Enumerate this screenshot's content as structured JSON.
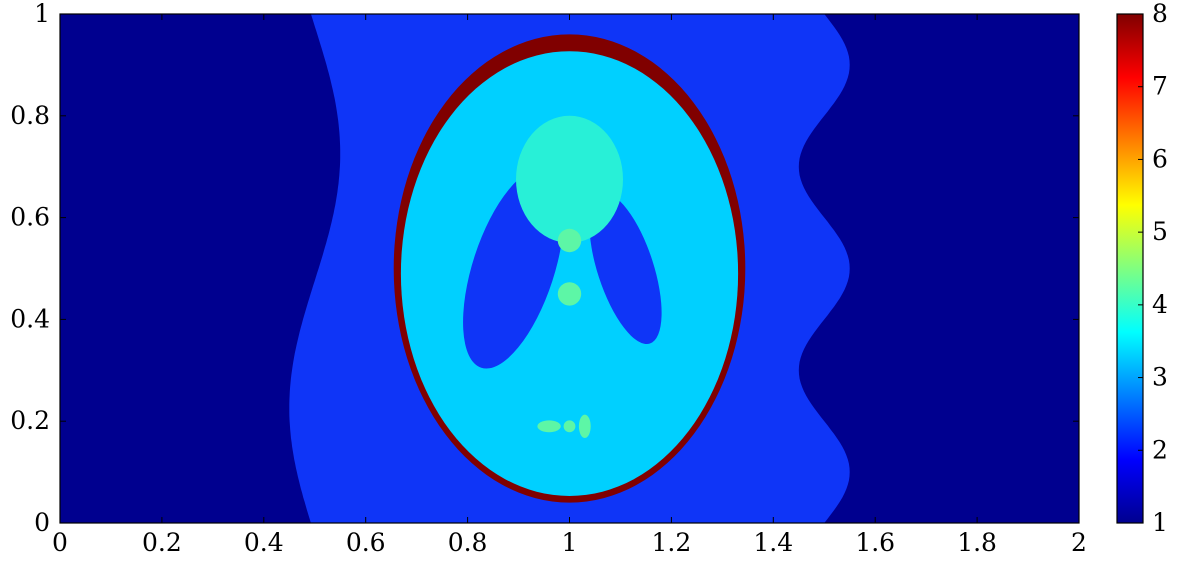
{
  "chart_data": [
    {
      "type": "heatmap",
      "title": "",
      "xlabel": "",
      "ylabel": "",
      "xlim": [
        0,
        2
      ],
      "ylim": [
        0,
        1
      ],
      "x_ticks": [
        "0",
        "0.2",
        "0.4",
        "0.6",
        "0.8",
        "1",
        "1.2",
        "1.4",
        "1.6",
        "1.8",
        "2"
      ],
      "y_ticks": [
        "0",
        "0.2",
        "0.4",
        "0.6",
        "0.8",
        "1"
      ],
      "grid": false,
      "colormap": "jet",
      "background_level": 1,
      "colors": {
        "level_1": "#00008f",
        "level_2": "#0f35f7",
        "level_3_4": "#00d0ff",
        "level_4": "#28f0d7",
        "level_4_5": "#5df6a6",
        "level_8": "#800000"
      },
      "regions": [
        {
          "name": "outer-band",
          "value": 2,
          "x_left_center": 0.5,
          "x_right_center": 1.5,
          "wave_amplitude": 0.05,
          "wave_cycles": 2.5
        },
        {
          "name": "skull-ring",
          "value": 8,
          "center": [
            1.0,
            0.5
          ],
          "semi_axes": [
            0.69,
            0.92
          ]
        },
        {
          "name": "brain",
          "value": 3.5,
          "center": [
            1.0,
            0.49
          ],
          "semi_axes": [
            0.662,
            0.874
          ]
        },
        {
          "name": "left-ventricle",
          "value": 2,
          "center": [
            0.89,
            0.5
          ],
          "semi_axes": [
            0.16,
            0.41
          ],
          "angle_deg": 18
        },
        {
          "name": "right-ventricle",
          "value": 2,
          "center": [
            1.11,
            0.5
          ],
          "semi_axes": [
            0.11,
            0.31
          ],
          "angle_deg": -18
        },
        {
          "name": "upper-blob",
          "value": 4,
          "center": [
            1.0,
            0.675
          ],
          "semi_axes": [
            0.21,
            0.25
          ]
        },
        {
          "name": "small-spot-top",
          "value": 4.5,
          "center": [
            1.0,
            0.555
          ],
          "semi_axes": [
            0.046,
            0.046
          ]
        },
        {
          "name": "small-spot-mid",
          "value": 4.2,
          "center": [
            1.0,
            0.45
          ],
          "semi_axes": [
            0.046,
            0.046
          ]
        },
        {
          "name": "spot-low-left",
          "value": 4.2,
          "center": [
            0.96,
            0.19
          ],
          "semi_axes": [
            0.046,
            0.023
          ]
        },
        {
          "name": "spot-low-center",
          "value": 4.2,
          "center": [
            1.0,
            0.19
          ],
          "semi_axes": [
            0.023,
            0.023
          ]
        },
        {
          "name": "spot-low-right",
          "value": 4.2,
          "center": [
            1.03,
            0.19
          ],
          "semi_axes": [
            0.023,
            0.046
          ]
        }
      ]
    },
    {
      "type": "colorbar",
      "range": [
        1,
        8
      ],
      "ticks": [
        "1",
        "2",
        "3",
        "4",
        "5",
        "6",
        "7",
        "8"
      ],
      "colormap": "jet"
    }
  ]
}
